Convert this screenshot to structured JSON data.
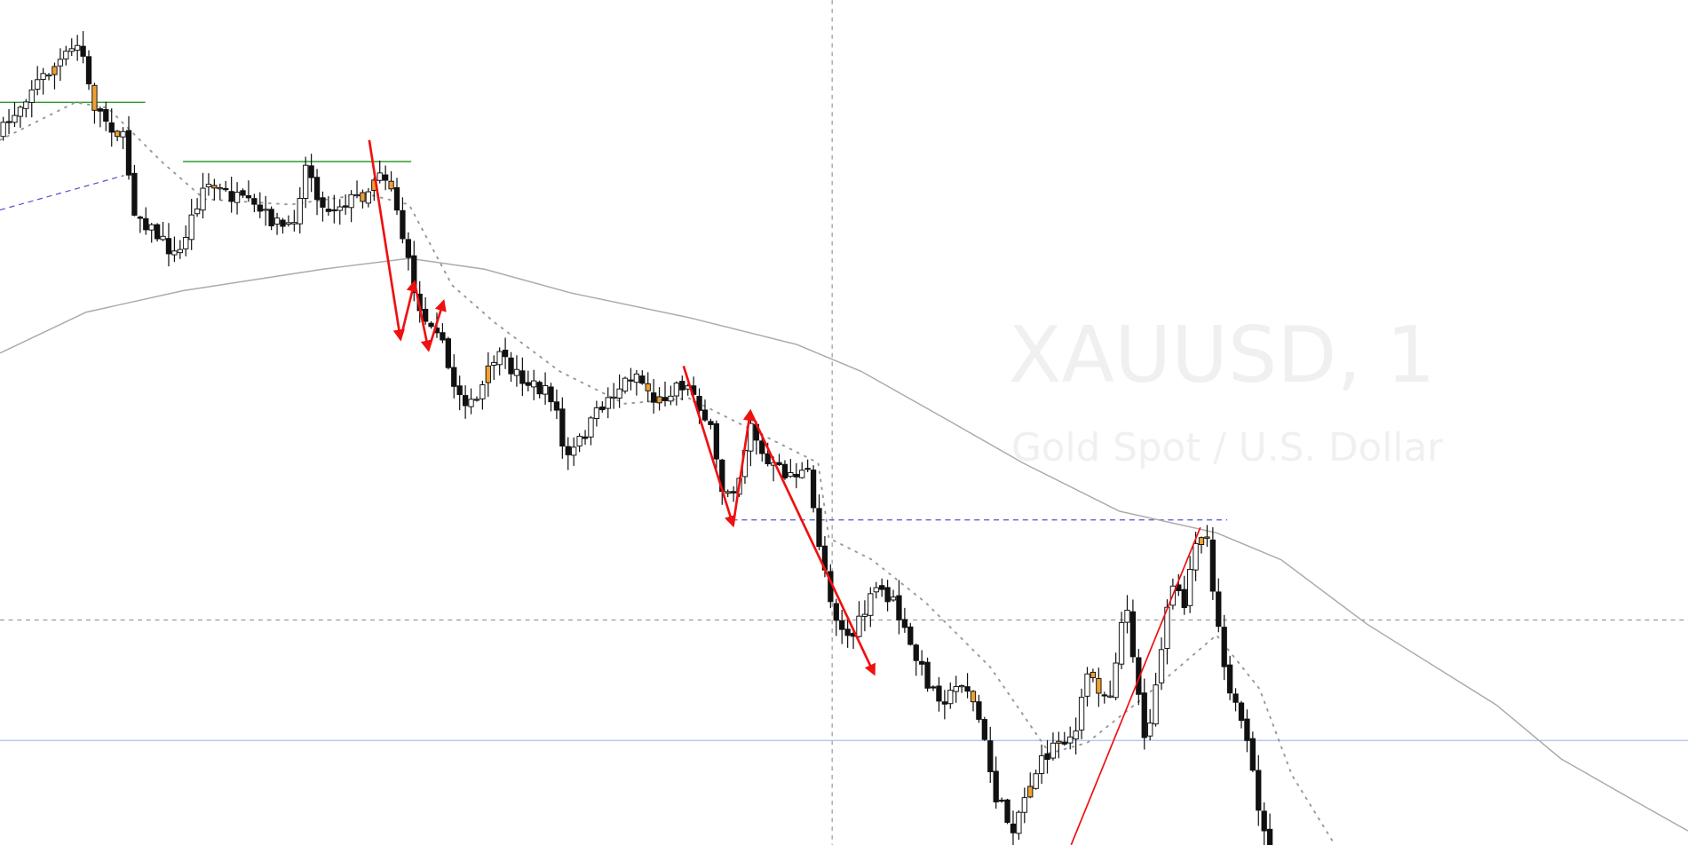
{
  "symbol": {
    "title": "XAUUSD, 1",
    "description": "Gold Spot / U.S. Dollar"
  }
}
